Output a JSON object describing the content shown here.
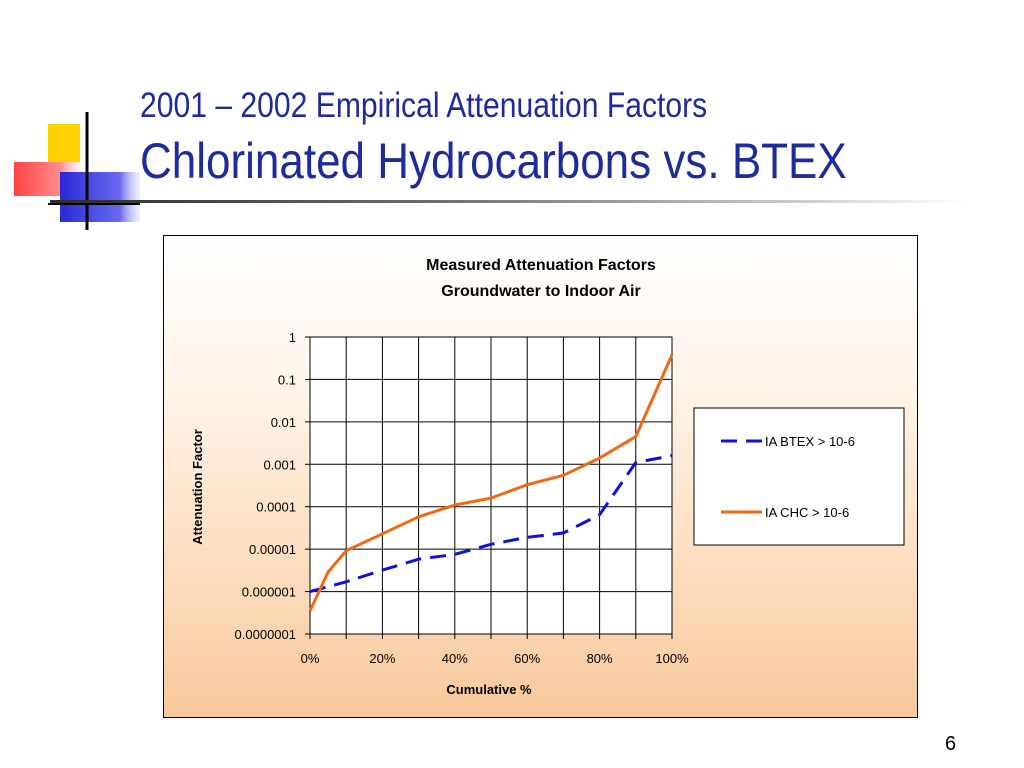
{
  "slide": {
    "title_line1": "2001 – 2002 Empirical Attenuation Factors",
    "title_line2": "Chlorinated Hydrocarbons vs. BTEX",
    "page_number": "6"
  },
  "chart_data": {
    "type": "line",
    "title": "Measured Attenuation Factors",
    "subtitle": "Groundwater to Indoor Air",
    "xlabel": "Cumulative %",
    "ylabel": "Attenuation Factor",
    "x_ticks": [
      "0%",
      "20%",
      "40%",
      "60%",
      "80%",
      "100%"
    ],
    "y_ticks": [
      "1",
      "0.1",
      "0.01",
      "0.001",
      "0.0001",
      "0.00001",
      "0.000001",
      "0.0000001"
    ],
    "xlim": [
      0,
      100
    ],
    "ylim": [
      1e-07,
      1
    ],
    "y_scale": "log",
    "grid": true,
    "legend_position": "right",
    "series": [
      {
        "name": "IA BTEX > 10-6",
        "color": "#1010d8",
        "dash": "dashed",
        "points": [
          [
            0,
            1e-06
          ],
          [
            10,
            1.7e-06
          ],
          [
            20,
            3.2e-06
          ],
          [
            30,
            5.8e-06
          ],
          [
            40,
            7.5e-06
          ],
          [
            50,
            1.3e-05
          ],
          [
            60,
            1.9e-05
          ],
          [
            70,
            2.4e-05
          ],
          [
            80,
            6.5e-05
          ],
          [
            90,
            0.0011
          ],
          [
            100,
            0.0016
          ]
        ]
      },
      {
        "name": "IA CHC > 10-6",
        "color": "#ee6a12",
        "dash": "solid",
        "points": [
          [
            0,
            3.5e-07
          ],
          [
            5,
            2.9e-06
          ],
          [
            10,
            9.2e-06
          ],
          [
            20,
            2.3e-05
          ],
          [
            30,
            5.8e-05
          ],
          [
            40,
            0.00011
          ],
          [
            50,
            0.00016
          ],
          [
            60,
            0.00033
          ],
          [
            70,
            0.00055
          ],
          [
            80,
            0.0014
          ],
          [
            90,
            0.0045
          ],
          [
            100,
            0.38
          ]
        ]
      }
    ]
  }
}
